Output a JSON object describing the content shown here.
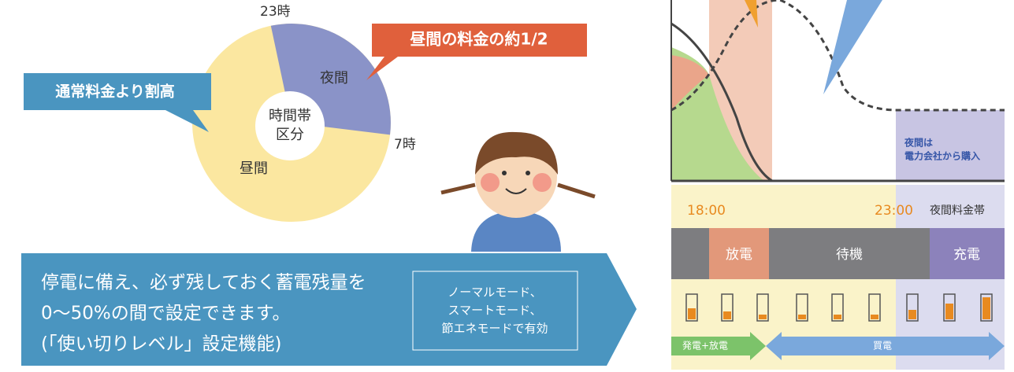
{
  "pie": {
    "label_23": "23時",
    "label_7": "7時",
    "night": "夜間",
    "day": "昼間",
    "center": [
      "時間帯",
      "区分"
    ]
  },
  "callouts": {
    "night_price": "昼間の料金の約1/2",
    "day_price": "通常料金より割高"
  },
  "banner": {
    "lines": [
      "停電に備え、必ず残しておく蓄電残量を",
      "0〜50%の間で設定できます。",
      "(「使い切りレベル」設定機能)"
    ],
    "modes": [
      "ノーマルモード、",
      "スマートモード、",
      "節エネモードで有効"
    ]
  },
  "timeline": {
    "night_note": [
      "夜間は",
      "電力会社から購入"
    ],
    "time_start": "18:00",
    "time_night": "23:00",
    "night_band": "夜間料金帯",
    "discharge": "放電",
    "standby": "待機",
    "charge": "充電",
    "gen_discharge": "発電+放電",
    "buy": "買電"
  }
}
